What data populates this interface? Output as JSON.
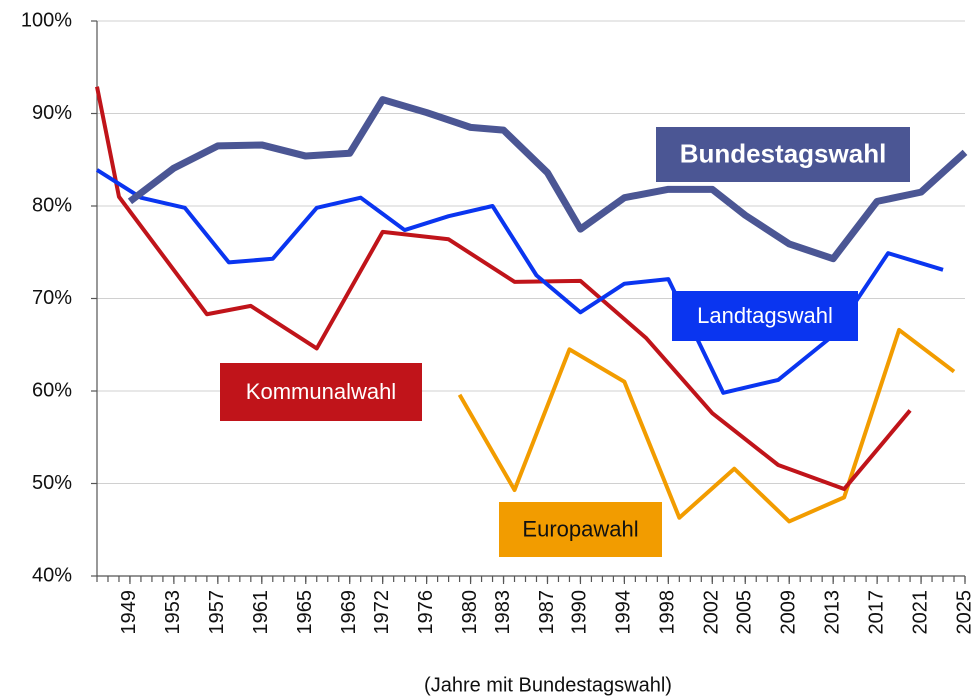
{
  "chart_data": {
    "type": "line",
    "x_label": "(Jahre mit Bundestagswahl)",
    "xlim": [
      1946,
      2025
    ],
    "xticks": [
      1949,
      1953,
      1957,
      1961,
      1965,
      1969,
      1972,
      1976,
      1980,
      1983,
      1987,
      1990,
      1994,
      1998,
      2002,
      2005,
      2009,
      2013,
      2017,
      2021,
      2025
    ],
    "ylim": [
      40,
      100
    ],
    "yticks": [
      {
        "value": 40,
        "label": "40%"
      },
      {
        "value": 50,
        "label": "50%"
      },
      {
        "value": 60,
        "label": "60%"
      },
      {
        "value": 70,
        "label": "70%"
      },
      {
        "value": 80,
        "label": "80%"
      },
      {
        "value": 90,
        "label": "90%"
      },
      {
        "value": 100,
        "label": "100%"
      }
    ],
    "grid": true,
    "series": [
      {
        "name": "Europawahl",
        "color": "#f29c00",
        "x": [
          1979,
          1984,
          1989,
          1994,
          1999,
          2004,
          2009,
          2014,
          2019,
          2024
        ],
        "values": [
          59.6,
          49.3,
          64.5,
          61.0,
          46.3,
          51.6,
          45.9,
          48.5,
          66.6,
          62.1
        ]
      },
      {
        "name": "Kommunalwahl",
        "color": "#c0141a",
        "x": [
          1946,
          1948,
          1956,
          1960,
          1966,
          1972,
          1978,
          1984,
          1990,
          1996,
          2002,
          2008,
          2014,
          2020
        ],
        "values": [
          92.9,
          81.0,
          68.3,
          69.2,
          64.6,
          77.2,
          76.4,
          71.8,
          71.9,
          65.7,
          57.6,
          52.0,
          49.4,
          57.9
        ]
      },
      {
        "name": "Landtagswahl",
        "color": "#0a35f0",
        "x": [
          1946,
          1950,
          1954,
          1958,
          1962,
          1966,
          1970,
          1974,
          1978,
          1982,
          1986,
          1990,
          1994,
          1998,
          2003,
          2008,
          2013,
          2018,
          2023
        ],
        "values": [
          83.9,
          80.9,
          79.8,
          73.9,
          74.3,
          79.8,
          80.9,
          77.4,
          78.9,
          80.0,
          72.5,
          68.5,
          71.6,
          72.1,
          59.8,
          61.2,
          66.0,
          74.9,
          73.1
        ]
      },
      {
        "name": "Bundestagswahl",
        "color": "#4b5694",
        "x": [
          1949,
          1953,
          1957,
          1961,
          1965,
          1969,
          1972,
          1976,
          1980,
          1983,
          1987,
          1990,
          1994,
          1998,
          2002,
          2005,
          2009,
          2013,
          2017,
          2021,
          2025
        ],
        "values": [
          80.5,
          84.1,
          86.5,
          86.6,
          85.4,
          85.7,
          91.5,
          90.1,
          88.5,
          88.2,
          83.6,
          77.5,
          80.9,
          81.8,
          81.8,
          79.0,
          75.9,
          74.3,
          80.5,
          81.5,
          85.8
        ]
      }
    ]
  }
}
